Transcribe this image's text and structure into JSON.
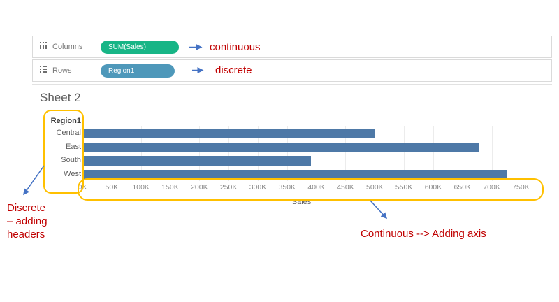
{
  "shelves": {
    "columns": {
      "label": "Columns",
      "pill": "SUM(Sales)",
      "annotation": "continuous"
    },
    "rows": {
      "label": "Rows",
      "pill": "Region1",
      "annotation": "discrete"
    }
  },
  "sheet_title": "Sheet 2",
  "chart_data": {
    "type": "bar",
    "orientation": "horizontal",
    "title": "Sheet 2",
    "row_header": "Region1",
    "categories": [
      "Central",
      "East",
      "South",
      "West"
    ],
    "values": [
      501000,
      679000,
      391000,
      725000
    ],
    "xlabel": "Sales",
    "x_tick_values": [
      0,
      50000,
      100000,
      150000,
      200000,
      250000,
      300000,
      350000,
      400000,
      450000,
      500000,
      550000,
      600000,
      650000,
      700000,
      750000
    ],
    "x_tick_labels": [
      "0K",
      "50K",
      "100K",
      "150K",
      "200K",
      "250K",
      "300K",
      "350K",
      "400K",
      "450K",
      "500K",
      "550K",
      "600K",
      "650K",
      "700K",
      "750K"
    ],
    "xlim": [
      0,
      765000
    ],
    "grid": true,
    "legend": false,
    "bar_color": "#4e79a7"
  },
  "annotations": {
    "discrete_note_lines": [
      "Discrete",
      "– adding",
      "headers"
    ],
    "continuous_note": "Continuous --> Adding axis"
  },
  "colors": {
    "pill_continuous_green": "#17b586",
    "pill_discrete_blue": "#4e98ba",
    "bar_blue": "#4e79a7",
    "annotation_red": "#c00000",
    "arrow_blue": "#4472c4",
    "highlight_yellow": "#ffc000"
  }
}
